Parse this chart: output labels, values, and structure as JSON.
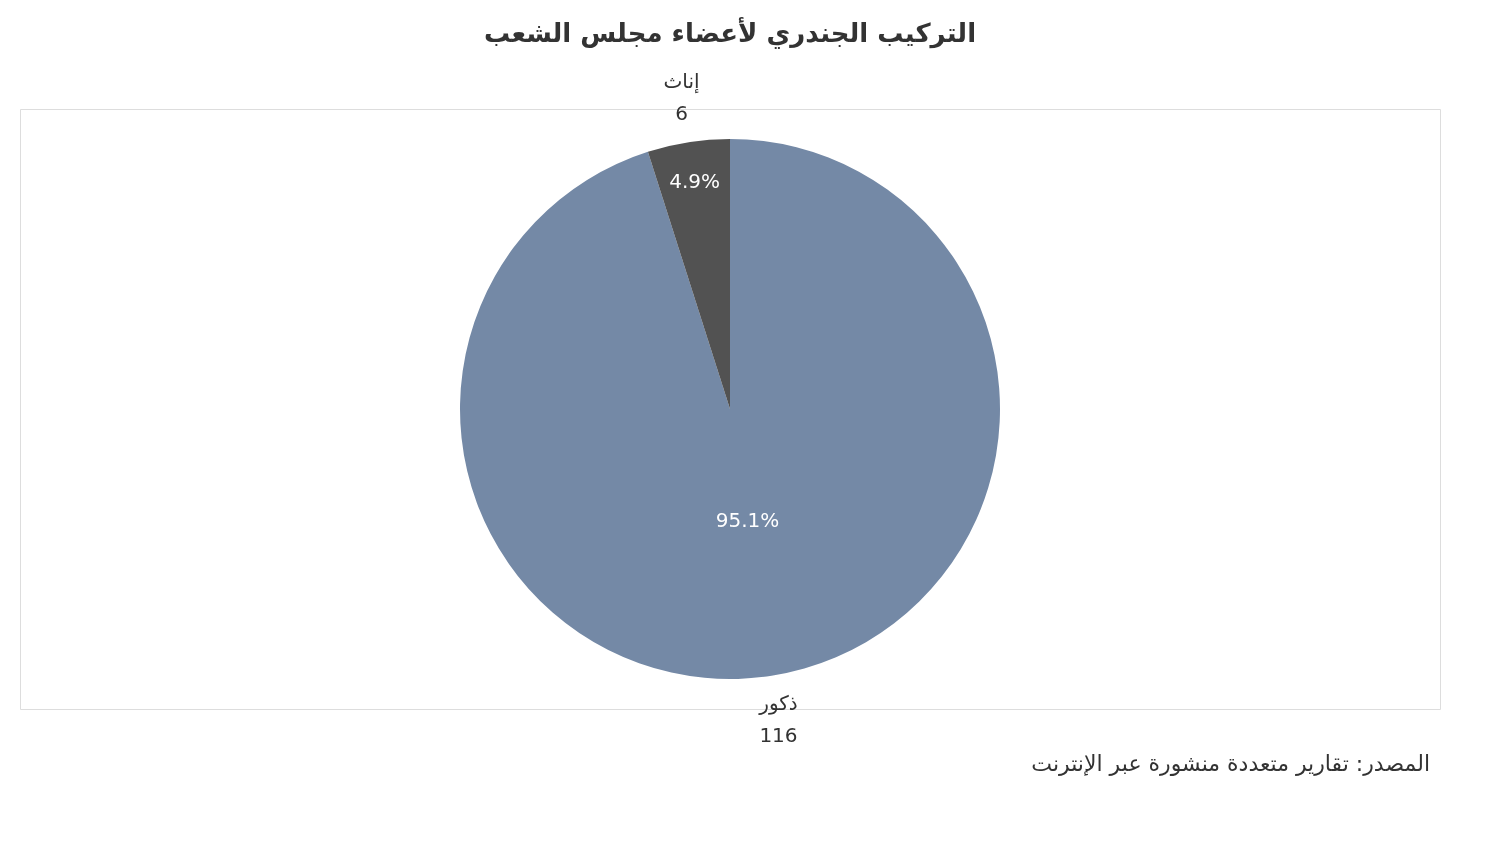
{
  "chart_data": {
    "type": "pie",
    "title": "التركيب الجندري لأعضاء مجلس الشعب",
    "categories": [
      "ذكور",
      "إناث"
    ],
    "values": [
      116,
      6
    ],
    "colors": [
      "#7489a6",
      "#525252"
    ],
    "data_labels": true,
    "legend": false,
    "annotations": [
      {
        "text": "95.1%",
        "x": "ذكور"
      },
      {
        "text": "4.9%",
        "x": "إناث"
      },
      "المصدر: تقارير متعددة منشورة عبر الإنترنت"
    ]
  }
}
